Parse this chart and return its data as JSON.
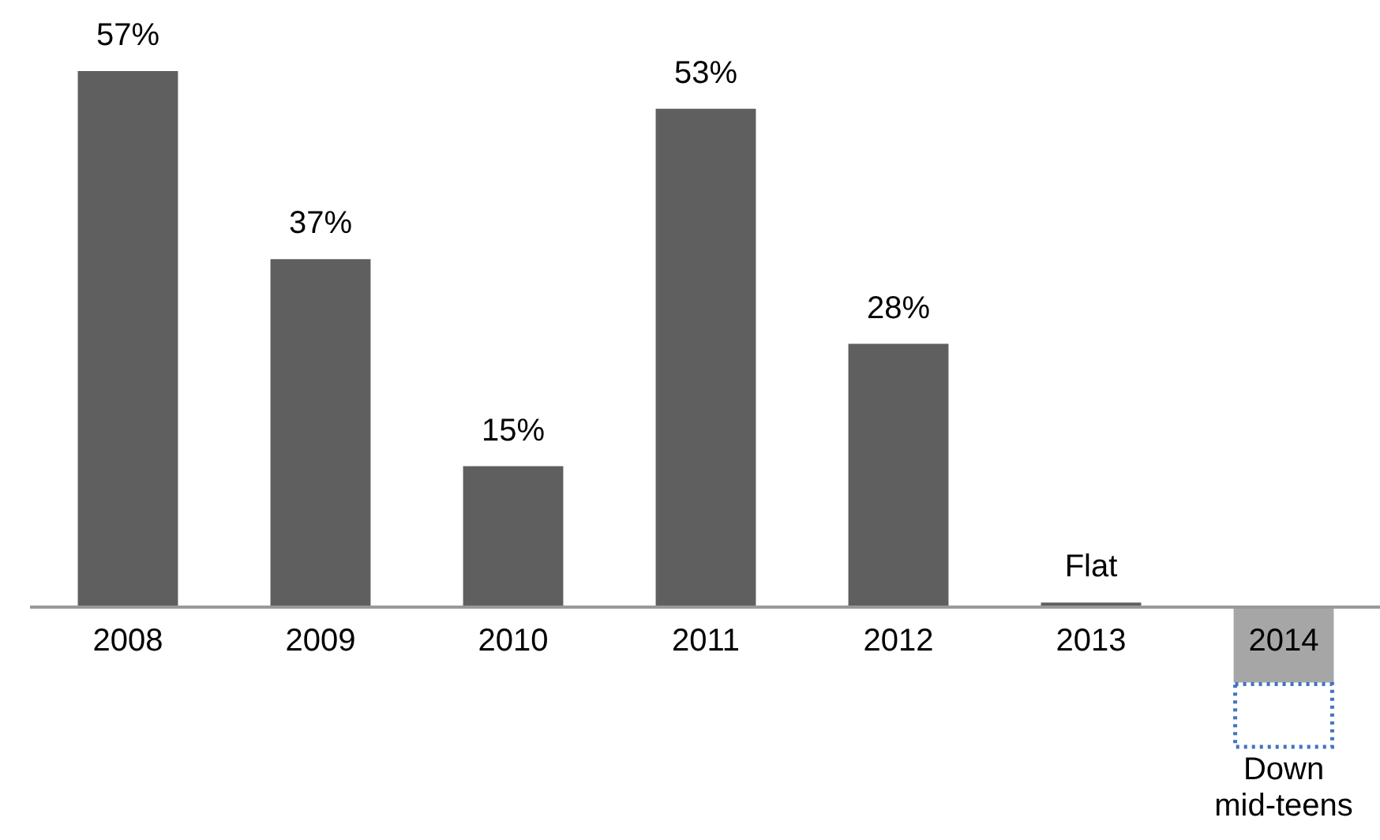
{
  "chart_data": {
    "type": "bar",
    "categories": [
      "2008",
      "2009",
      "2010",
      "2011",
      "2012",
      "2013",
      "2014"
    ],
    "stacked": true,
    "legend": false,
    "grid": false,
    "series": [
      {
        "colors": [
          "#5f5f5f",
          "#5f5f5f",
          "#5f5f5f",
          "#5f5f5f",
          "#5f5f5f",
          "#5f5f5f",
          "#a6a6a6"
        ],
        "values": [
          57,
          37,
          15,
          53,
          28,
          0.5,
          -8
        ],
        "value_labels": [
          "57%",
          "37%",
          "15%",
          "53%",
          "28%",
          "Flat",
          null
        ]
      },
      {
        "color": "#4472c4",
        "line_style": "dotted",
        "values": [
          null,
          null,
          null,
          null,
          null,
          null,
          -7
        ],
        "value_labels": [
          null,
          null,
          null,
          null,
          null,
          null,
          "Down mid-teens"
        ]
      }
    ]
  }
}
